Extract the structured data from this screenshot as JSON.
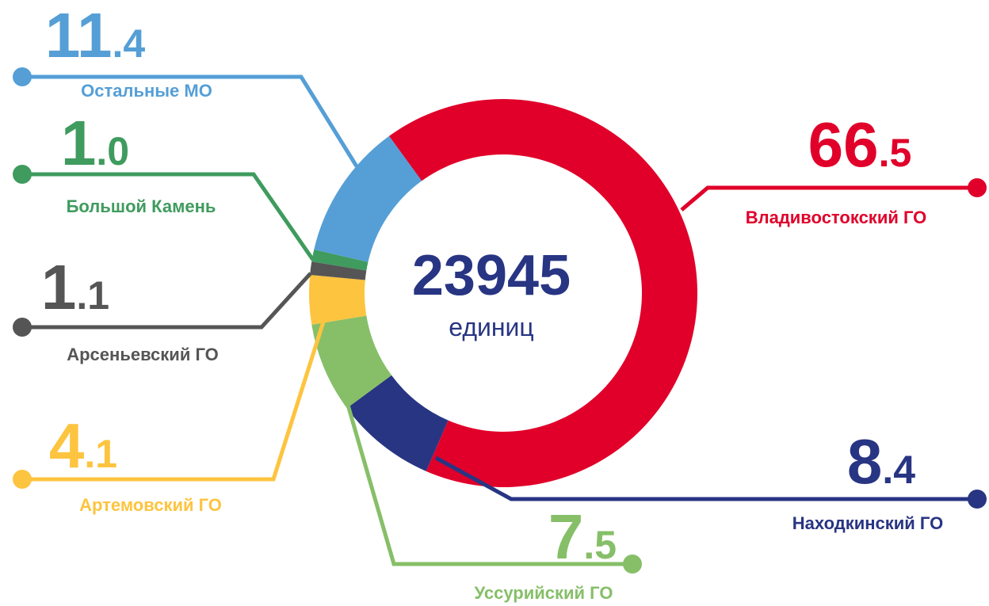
{
  "chart_data": {
    "type": "pie",
    "categories": [
      "Владивостокский ГО",
      "Находкинский ГО",
      "Уссурийский ГО",
      "Артемовский ГО",
      "Арсеньевский ГО",
      "Большой Камень",
      "Остальные МО"
    ],
    "values": [
      66.5,
      8.4,
      7.5,
      4.1,
      1.1,
      1.0,
      11.4
    ],
    "value_labels": [
      "66.5",
      "8.4",
      "7.5",
      "4.1",
      "1.1",
      "1.0",
      "11.4"
    ],
    "colors": [
      "#e0002a",
      "#283583",
      "#86bf68",
      "#fdc43f",
      "#555555",
      "#3f9b5e",
      "#559fd6"
    ],
    "center_value": 23945,
    "center_label": "единиц"
  }
}
